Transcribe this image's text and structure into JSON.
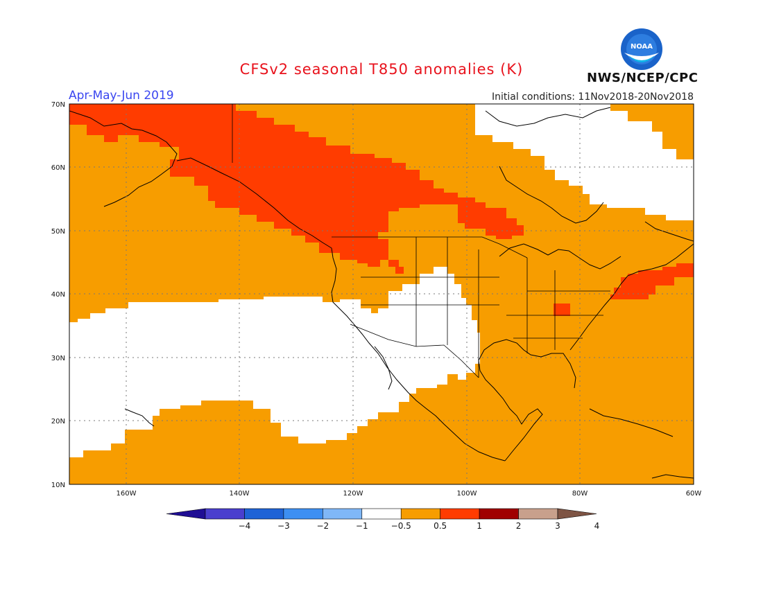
{
  "header": {
    "title": "CFSv2 seasonal T850 anomalies (K)",
    "season": "Apr-May-Jun 2019",
    "initial_conditions": "Initial conditions: 11Nov2018-20Nov2018",
    "agency": "NWS/NCEP/CPC",
    "logo_text": "NOAA"
  },
  "map": {
    "lat_labels": [
      "70N",
      "60N",
      "50N",
      "40N",
      "30N",
      "20N",
      "10N"
    ],
    "lon_labels": [
      "160W",
      "140W",
      "120W",
      "100W",
      "80W",
      "60W"
    ],
    "colors": {
      "white": "#ffffff",
      "orange": "#f79d00",
      "red": "#ff3c00",
      "darkred": "#c00000",
      "coast": "#000000"
    }
  },
  "colorbar": {
    "labels": [
      "−4",
      "−3",
      "−2",
      "−1",
      "−0.5",
      "0.5",
      "1",
      "2",
      "3",
      "4"
    ],
    "colors": [
      "#1f0e94",
      "#4a3fce",
      "#1f63d6",
      "#3d8ff2",
      "#7fb7f7",
      "#ffffff",
      "#f79d00",
      "#ff3c00",
      "#a00000",
      "#c8a08c",
      "#7e5444"
    ]
  }
}
